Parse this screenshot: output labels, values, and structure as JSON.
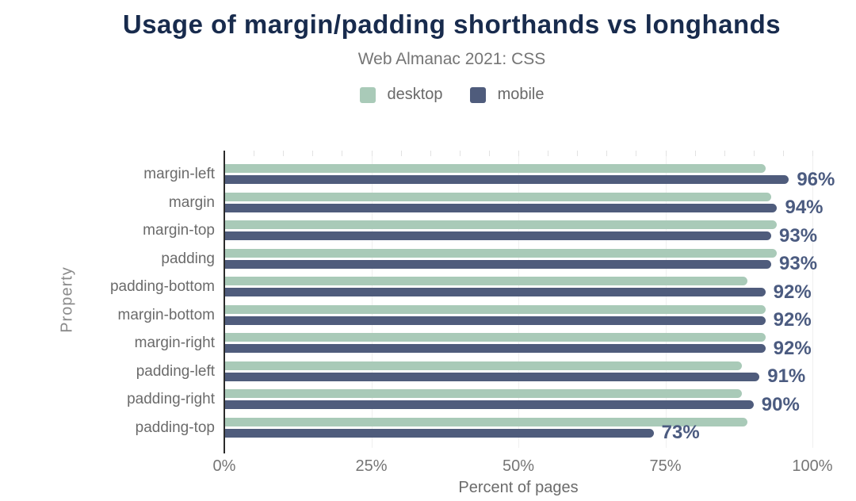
{
  "header": {
    "title": "Usage of margin/padding shorthands vs longhands",
    "subtitle": "Web Almanac 2021: CSS"
  },
  "legend": [
    {
      "label": "desktop",
      "color": "#a9cab8"
    },
    {
      "label": "mobile",
      "color": "#4f5c7c"
    }
  ],
  "colors": {
    "desktop": "#a9cab8",
    "mobile": "#4f5c7c",
    "title": "#182b4d",
    "value_label": "#4b5b80",
    "axis_text": "#757575",
    "gridline": "#f0f0f0",
    "axis_line": "#2b2b2b"
  },
  "chart_data": {
    "type": "bar",
    "orientation": "horizontal",
    "title": "Usage of margin/padding shorthands vs longhands",
    "subtitle": "Web Almanac 2021: CSS",
    "categories": [
      "margin-left",
      "margin",
      "margin-top",
      "padding",
      "padding-bottom",
      "margin-bottom",
      "margin-right",
      "padding-left",
      "padding-right",
      "padding-top"
    ],
    "series": [
      {
        "name": "desktop",
        "values": [
          92,
          93,
          94,
          94,
          89,
          92,
          92,
          88,
          88,
          89
        ]
      },
      {
        "name": "mobile",
        "values": [
          96,
          94,
          93,
          93,
          92,
          92,
          92,
          91,
          90,
          73
        ]
      }
    ],
    "value_labels": [
      "96%",
      "94%",
      "93%",
      "93%",
      "92%",
      "92%",
      "92%",
      "91%",
      "90%",
      "73%"
    ],
    "value_labels_series": "mobile",
    "xlabel": "Percent of pages",
    "ylabel": "Property",
    "xlim": [
      0,
      100
    ],
    "x_ticks": [
      "0%",
      "25%",
      "50%",
      "75%",
      "100%"
    ],
    "x_tick_values": [
      0,
      25,
      50,
      75,
      100
    ],
    "grid": true,
    "legend_position": "top"
  }
}
